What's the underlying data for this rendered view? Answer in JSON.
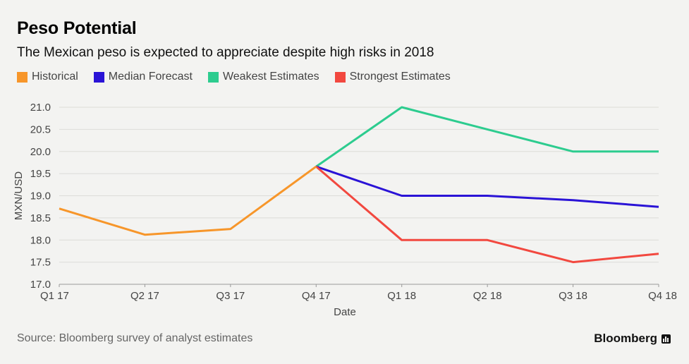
{
  "chart_data": {
    "type": "line",
    "title": "Peso Potential",
    "subtitle": "The Mexican peso is expected to appreciate despite high risks in 2018",
    "xlabel": "Date",
    "ylabel": "MXN/USD",
    "ylim": [
      17.0,
      21.0
    ],
    "yticks": [
      "21.0",
      "20.5",
      "20.0",
      "19.5",
      "19.0",
      "18.5",
      "18.0",
      "17.5",
      "17.0"
    ],
    "categories": [
      "Q1 17",
      "Q2 17",
      "Q3 17",
      "Q4 17",
      "Q1 18",
      "Q2 18",
      "Q3 18",
      "Q4 18"
    ],
    "series": [
      {
        "name": "Historical",
        "color": "#f7962a",
        "values": [
          18.71,
          18.12,
          18.25,
          19.66,
          null,
          null,
          null,
          null
        ]
      },
      {
        "name": "Median Forecast",
        "color": "#2a13d6",
        "values": [
          null,
          null,
          null,
          19.66,
          19.0,
          19.0,
          18.9,
          18.75
        ]
      },
      {
        "name": "Weakest Estimates",
        "color": "#2dcc8f",
        "values": [
          null,
          null,
          null,
          19.66,
          21.0,
          20.5,
          20.0,
          20.0
        ]
      },
      {
        "name": "Strongest Estimates",
        "color": "#f2483f",
        "values": [
          null,
          null,
          null,
          19.66,
          18.0,
          18.0,
          17.5,
          17.69
        ]
      }
    ]
  },
  "footer": {
    "source": "Source: Bloomberg survey of analyst estimates",
    "brand": "Bloomberg"
  }
}
